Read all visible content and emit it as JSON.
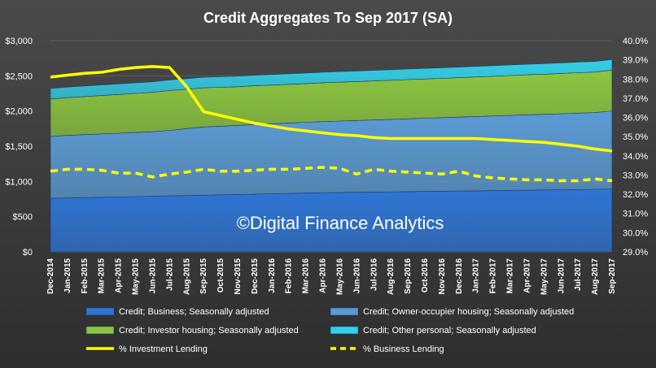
{
  "chart_data": {
    "type": "area",
    "title": "Credit Aggregates To Sep 2017 (SA)",
    "watermark": "©Digital Finance Analytics",
    "categories": [
      "Dec-2014",
      "Jan-2015",
      "Feb-2015",
      "Mar-2015",
      "Apr-2015",
      "May-2015",
      "Jun-2015",
      "Jul-2015",
      "Aug-2015",
      "Sep-2015",
      "Oct-2015",
      "Nov-2015",
      "Dec-2015",
      "Jan-2016",
      "Feb-2016",
      "Mar-2016",
      "Apr-2016",
      "May-2016",
      "Jun-2016",
      "Jul-2016",
      "Aug-2016",
      "Sep-2016",
      "Oct-2016",
      "Nov-2016",
      "Dec-2016",
      "Jan-2017",
      "Feb-2017",
      "Mar-2017",
      "Apr-2017",
      "May-2017",
      "Jun-2017",
      "Jul-2017",
      "Aug-2017",
      "Sep-2017"
    ],
    "y_left": {
      "ticks": [
        "$0",
        "$500",
        "$1,000",
        "$1,500",
        "$2,000",
        "$2,500",
        "$3,000"
      ],
      "min": 0,
      "max": 3000
    },
    "y_right": {
      "ticks": [
        "29.0%",
        "30.0%",
        "31.0%",
        "32.0%",
        "33.0%",
        "34.0%",
        "35.0%",
        "36.0%",
        "37.0%",
        "38.0%",
        "39.0%",
        "40.0%"
      ],
      "min": 29,
      "max": 40
    },
    "series": [
      {
        "name": "Credit; Business; Seasonally adjusted",
        "type": "stacked-area",
        "axis": "left",
        "color": "#2e75d6",
        "values": [
          760,
          765,
          770,
          775,
          780,
          785,
          790,
          795,
          800,
          805,
          810,
          815,
          820,
          825,
          830,
          835,
          840,
          843,
          846,
          849,
          852,
          855,
          858,
          861,
          864,
          867,
          870,
          873,
          876,
          879,
          882,
          885,
          888,
          892
        ]
      },
      {
        "name": "Credit; Owner-occupier housing; Seasonally adjusted",
        "type": "stacked-area",
        "axis": "left",
        "color": "#5b9bd5",
        "values": [
          880,
          890,
          895,
          900,
          905,
          910,
          915,
          930,
          950,
          970,
          975,
          980,
          990,
          995,
          1000,
          1005,
          1010,
          1015,
          1020,
          1025,
          1030,
          1035,
          1040,
          1045,
          1050,
          1055,
          1060,
          1065,
          1070,
          1075,
          1080,
          1085,
          1090,
          1110
        ]
      },
      {
        "name": "Credit; Investor housing; Seasonally adjusted",
        "type": "stacked-area",
        "axis": "left",
        "color": "#8cc63f",
        "values": [
          530,
          535,
          540,
          545,
          550,
          555,
          560,
          565,
          560,
          555,
          552,
          550,
          548,
          548,
          549,
          550,
          551,
          552,
          553,
          554,
          555,
          556,
          557,
          558,
          560,
          562,
          564,
          566,
          568,
          570,
          572,
          574,
          576,
          580
        ]
      },
      {
        "name": "Credit; Other personal; Seasonally adjusted",
        "type": "stacked-area",
        "axis": "left",
        "color": "#33d0e8",
        "values": [
          150,
          150,
          150,
          150,
          150,
          150,
          150,
          150,
          150,
          150,
          150,
          150,
          150,
          150,
          150,
          150,
          150,
          150,
          150,
          150,
          150,
          150,
          150,
          150,
          150,
          150,
          150,
          150,
          150,
          150,
          150,
          150,
          150,
          150
        ]
      },
      {
        "name": "% Investment Lending",
        "type": "line",
        "axis": "right",
        "color": "#ffff00",
        "values": [
          38.1,
          38.2,
          38.3,
          38.35,
          38.5,
          38.6,
          38.65,
          38.6,
          37.6,
          36.3,
          36.1,
          35.9,
          35.7,
          35.55,
          35.4,
          35.3,
          35.2,
          35.1,
          35.05,
          34.95,
          34.9,
          34.9,
          34.9,
          34.9,
          34.9,
          34.9,
          34.85,
          34.8,
          34.75,
          34.7,
          34.6,
          34.5,
          34.35,
          34.25
        ]
      },
      {
        "name": "% Business Lending",
        "type": "line",
        "dashed": true,
        "axis": "right",
        "color": "#ffff00",
        "values": [
          33.2,
          33.3,
          33.3,
          33.25,
          33.1,
          33.1,
          32.9,
          33.05,
          33.15,
          33.3,
          33.2,
          33.2,
          33.25,
          33.3,
          33.3,
          33.35,
          33.4,
          33.35,
          33.05,
          33.3,
          33.2,
          33.15,
          33.1,
          33.05,
          33.2,
          32.95,
          32.85,
          32.8,
          32.75,
          32.75,
          32.7,
          32.7,
          32.8,
          32.7
        ]
      }
    ],
    "grid": true,
    "legend": "bottom"
  }
}
